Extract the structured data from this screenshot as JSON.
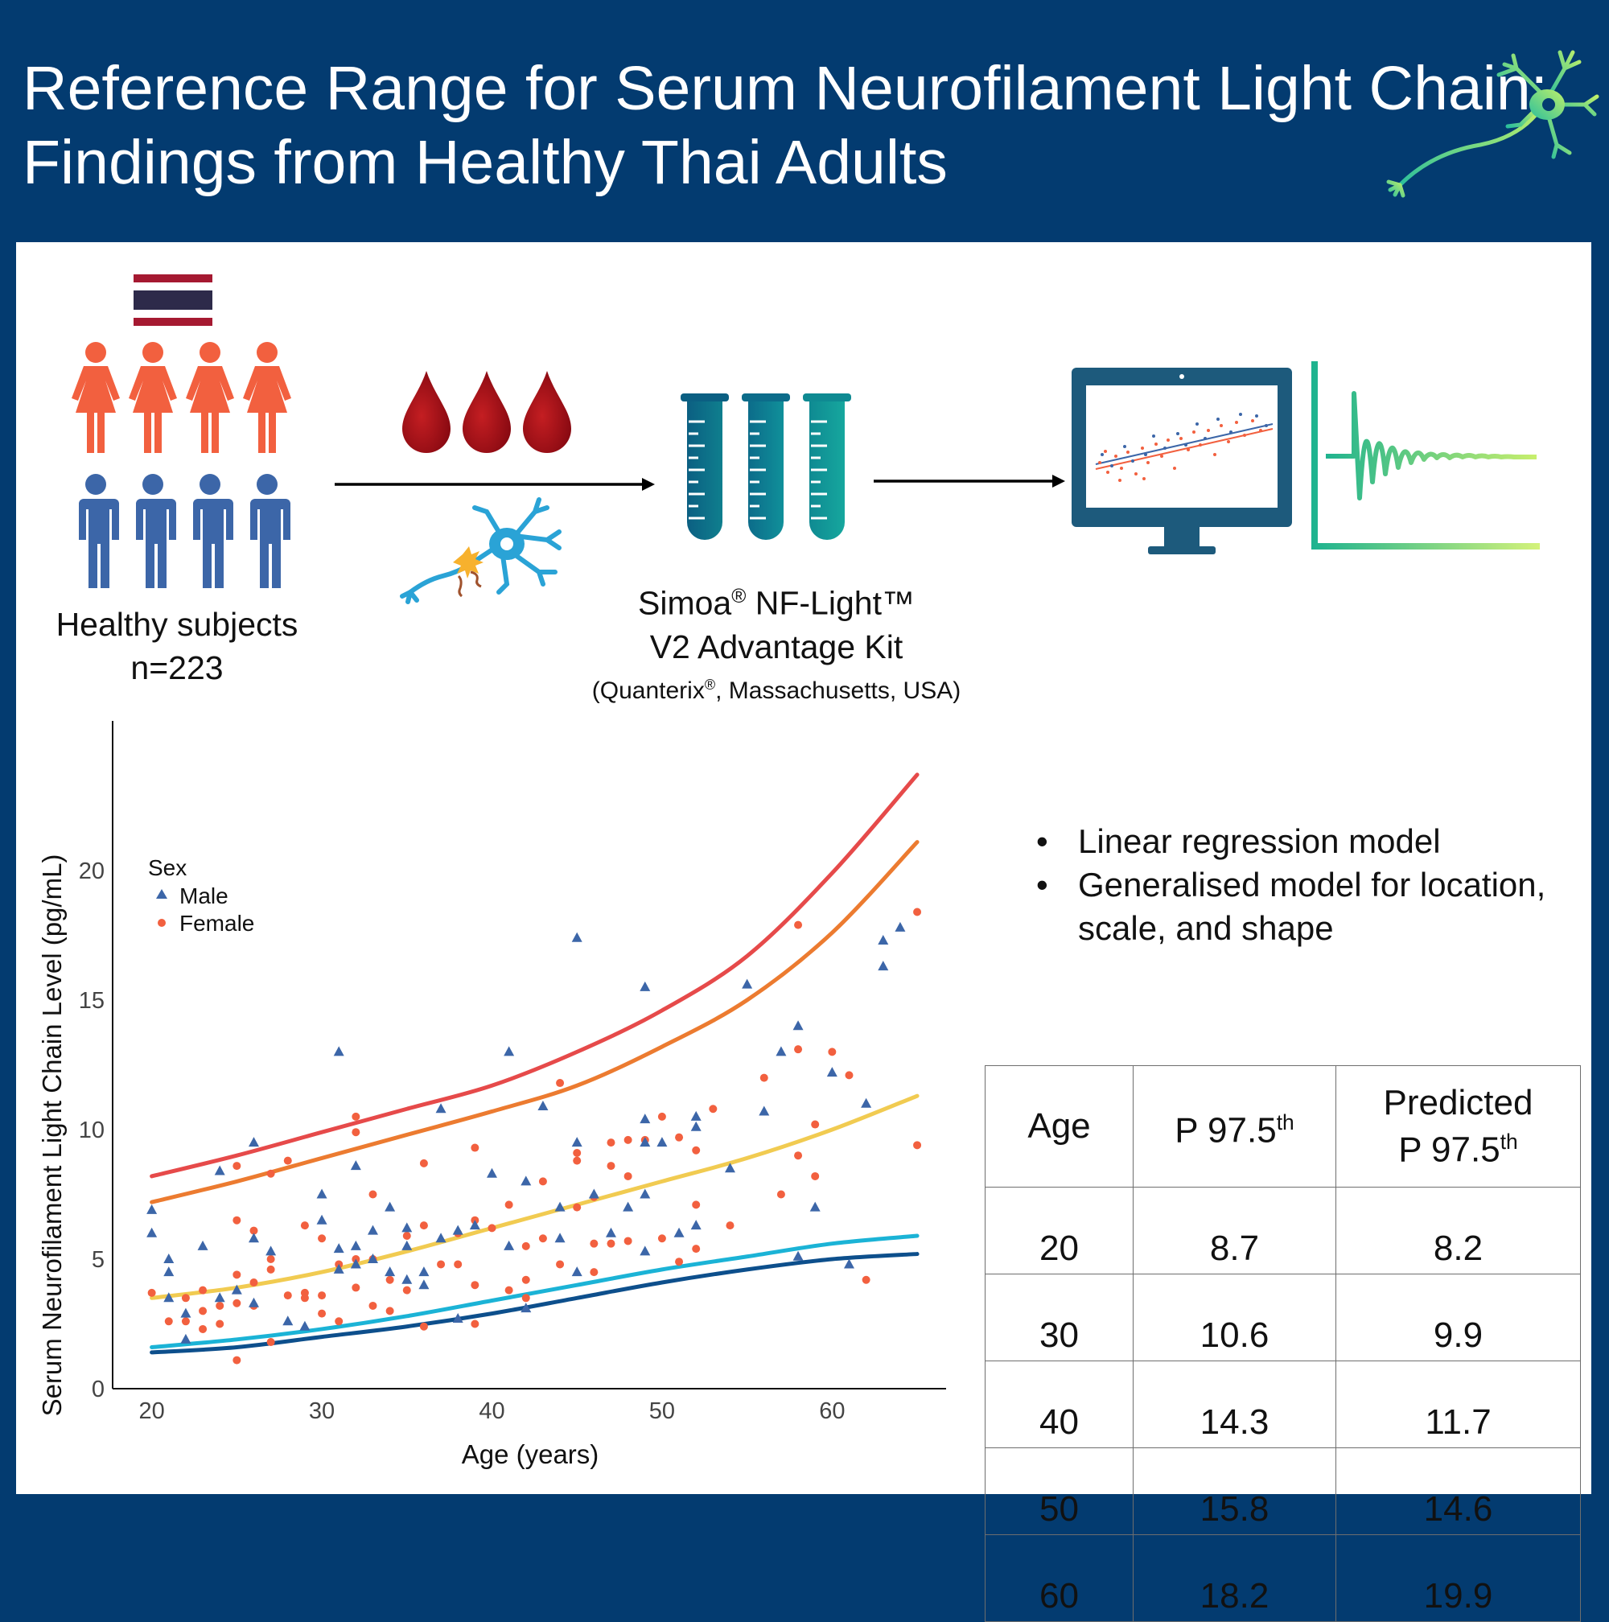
{
  "title": {
    "line1": "Reference Range for Serum Neurofilament Light Chain:",
    "line2": "Findings from Healthy Thai Adults"
  },
  "colors": {
    "background": "#033b70",
    "female": "#f2603f",
    "male": "#3c66a8",
    "blood": "#a00a14",
    "tube": "#0f7f8e",
    "monitor": "#1d5a7c",
    "curve_p975": "#e64a4a",
    "curve_predicted_p975": "#ec7b30",
    "curve_median": "#f1cb51",
    "curve_p25": "#1bb3d6",
    "curve_p025": "#0d4f8c"
  },
  "icons": [
    "thai-flag-icon",
    "female-person-icon",
    "male-person-icon",
    "blood-drop-icon",
    "neuron-icon",
    "test-tube-icon",
    "computer-monitor-icon",
    "waveform-icon"
  ],
  "subjects": {
    "label": "Healthy subjects",
    "n": "n=223"
  },
  "kit": {
    "line1_a": "Simoa",
    "line1_reg": "®",
    "line1_b": " NF-Light™",
    "line2": "V2 Advantage Kit",
    "line3_a": "(Quanterix",
    "line3_reg": "®",
    "line3_b": ", Massachusetts, USA)"
  },
  "methods": {
    "bullet": "•",
    "item1": "Linear regression model",
    "item2_line1": "Generalised model for location,",
    "item2_line2": "scale, and shape"
  },
  "chart_data": {
    "type": "scatter",
    "xlabel": "Age (years)",
    "ylabel": "Serum Neurofilament Light Chain Level (pg/mL)",
    "xlim": [
      17.7,
      66.7
    ],
    "ylim": [
      0,
      25
    ],
    "xticks": [
      20,
      30,
      40,
      50,
      60
    ],
    "yticks": [
      0,
      5,
      10,
      15,
      20
    ],
    "legend": {
      "title": "Sex",
      "position": "top-left",
      "entries": [
        "Male",
        "Female"
      ]
    },
    "grid": false,
    "male_points": [
      [
        20,
        6.9
      ],
      [
        20,
        6
      ],
      [
        21,
        5
      ],
      [
        21,
        4.5
      ],
      [
        21,
        3.5
      ],
      [
        22,
        2.9
      ],
      [
        22,
        1.9
      ],
      [
        23,
        5.5
      ],
      [
        24,
        8.4
      ],
      [
        24,
        3.5
      ],
      [
        25,
        3.8
      ],
      [
        26,
        9.5
      ],
      [
        26,
        5.8
      ],
      [
        26,
        3.3
      ],
      [
        27,
        5.3
      ],
      [
        28,
        2.6
      ],
      [
        29,
        2.4
      ],
      [
        30,
        7.5
      ],
      [
        30,
        6.5
      ],
      [
        31,
        13
      ],
      [
        31,
        5.4
      ],
      [
        31,
        4.6
      ],
      [
        32,
        8.6
      ],
      [
        32,
        5.5
      ],
      [
        32,
        4.8
      ],
      [
        33,
        6.1
      ],
      [
        33,
        5
      ],
      [
        34,
        7
      ],
      [
        34,
        4.5
      ],
      [
        35,
        6.2
      ],
      [
        35,
        5.5
      ],
      [
        35,
        4.2
      ],
      [
        36,
        4.5
      ],
      [
        36,
        4
      ],
      [
        37,
        5.8
      ],
      [
        37,
        10.8
      ],
      [
        38,
        2.7
      ],
      [
        38,
        6.1
      ],
      [
        39,
        6.3
      ],
      [
        40,
        8.3
      ],
      [
        41,
        13
      ],
      [
        41,
        5.5
      ],
      [
        42,
        8
      ],
      [
        42,
        3.1
      ],
      [
        43,
        10.9
      ],
      [
        44,
        7
      ],
      [
        44,
        5.8
      ],
      [
        45,
        17.4
      ],
      [
        45,
        9.5
      ],
      [
        45,
        4.5
      ],
      [
        46,
        7.5
      ],
      [
        47,
        6
      ],
      [
        48,
        7
      ],
      [
        49,
        15.5
      ],
      [
        49,
        10.4
      ],
      [
        49,
        9.5
      ],
      [
        49,
        7.5
      ],
      [
        49,
        5.3
      ],
      [
        50,
        9.5
      ],
      [
        51,
        6
      ],
      [
        52,
        10.5
      ],
      [
        52,
        6.3
      ],
      [
        52,
        10.1
      ],
      [
        54,
        8.5
      ],
      [
        55,
        15.6
      ],
      [
        56,
        10.7
      ],
      [
        57,
        13
      ],
      [
        58,
        14
      ],
      [
        58,
        5.1
      ],
      [
        59,
        7
      ],
      [
        60,
        12.2
      ],
      [
        61,
        4.8
      ],
      [
        62,
        11
      ],
      [
        63,
        17.3
      ],
      [
        63,
        16.3
      ],
      [
        64,
        17.8
      ]
    ],
    "female_points": [
      [
        20,
        3.7
      ],
      [
        21,
        2.6
      ],
      [
        22,
        2.6
      ],
      [
        22,
        3.5
      ],
      [
        23,
        2.3
      ],
      [
        23,
        3.8
      ],
      [
        23,
        3
      ],
      [
        24,
        3.2
      ],
      [
        24,
        2.5
      ],
      [
        25,
        8.6
      ],
      [
        25,
        6.5
      ],
      [
        25,
        4.4
      ],
      [
        25,
        3.3
      ],
      [
        25,
        1.1
      ],
      [
        26,
        6.1
      ],
      [
        26,
        4.1
      ],
      [
        26,
        3.2
      ],
      [
        27,
        8.3
      ],
      [
        27,
        5
      ],
      [
        27,
        4.6
      ],
      [
        27,
        1.8
      ],
      [
        28,
        8.8
      ],
      [
        28,
        3.6
      ],
      [
        29,
        6.3
      ],
      [
        29,
        3.7
      ],
      [
        29,
        3.5
      ],
      [
        30,
        5.8
      ],
      [
        30,
        3.6
      ],
      [
        30,
        2.9
      ],
      [
        31,
        4.8
      ],
      [
        31,
        2.6
      ],
      [
        32,
        10.5
      ],
      [
        32,
        9.9
      ],
      [
        32,
        5
      ],
      [
        32,
        3.9
      ],
      [
        33,
        7.5
      ],
      [
        33,
        5
      ],
      [
        33,
        3.2
      ],
      [
        34,
        4.2
      ],
      [
        34,
        3
      ],
      [
        35,
        5.9
      ],
      [
        35,
        3.8
      ],
      [
        36,
        8.7
      ],
      [
        36,
        6.3
      ],
      [
        36,
        2.4
      ],
      [
        37,
        4.8
      ],
      [
        38,
        6
      ],
      [
        38,
        4.8
      ],
      [
        39,
        9.3
      ],
      [
        39,
        6.5
      ],
      [
        39,
        4
      ],
      [
        39,
        2.5
      ],
      [
        40,
        6.2
      ],
      [
        41,
        7.1
      ],
      [
        41,
        3.8
      ],
      [
        42,
        5.5
      ],
      [
        42,
        4.2
      ],
      [
        42,
        3.5
      ],
      [
        43,
        8
      ],
      [
        43,
        5.8
      ],
      [
        44,
        11.8
      ],
      [
        44,
        4.8
      ],
      [
        45,
        9.1
      ],
      [
        45,
        8.8
      ],
      [
        45,
        7
      ],
      [
        46,
        7.4
      ],
      [
        46,
        5.6
      ],
      [
        46,
        4.5
      ],
      [
        47,
        9.5
      ],
      [
        47,
        8.6
      ],
      [
        47,
        5.6
      ],
      [
        48,
        9.6
      ],
      [
        48,
        8.2
      ],
      [
        48,
        5.7
      ],
      [
        49,
        9.6
      ],
      [
        50,
        10.5
      ],
      [
        50,
        5.8
      ],
      [
        51,
        9.7
      ],
      [
        51,
        4.9
      ],
      [
        52,
        9.2
      ],
      [
        52,
        7.1
      ],
      [
        52,
        5.4
      ],
      [
        53,
        10.8
      ],
      [
        54,
        6.3
      ],
      [
        56,
        12
      ],
      [
        57,
        7.5
      ],
      [
        58,
        17.9
      ],
      [
        58,
        13.1
      ],
      [
        58,
        9
      ],
      [
        59,
        8.2
      ],
      [
        59,
        10.2
      ],
      [
        60,
        13
      ],
      [
        61,
        12.1
      ],
      [
        62,
        4.2
      ],
      [
        65,
        18.4
      ],
      [
        65,
        9.4
      ]
    ],
    "series": [
      {
        "x": [
          20,
          25,
          30,
          35,
          40,
          45,
          50,
          55,
          60,
          65
        ],
        "values": [
          8.2,
          9,
          9.9,
          10.8,
          11.7,
          13,
          14.6,
          16.7,
          19.9,
          23.7
        ]
      },
      {
        "x": [
          20,
          25,
          30,
          35,
          40,
          45,
          50,
          55,
          60,
          65
        ],
        "values": [
          7.2,
          8,
          8.9,
          9.8,
          10.7,
          11.7,
          13.2,
          15,
          17.6,
          21.1
        ]
      },
      {
        "x": [
          20,
          25,
          30,
          35,
          40,
          45,
          50,
          55,
          60,
          65
        ],
        "values": [
          3.5,
          3.9,
          4.5,
          5.3,
          6.2,
          7.1,
          8,
          8.9,
          10,
          11.3
        ]
      },
      {
        "x": [
          20,
          25,
          30,
          35,
          40,
          45,
          50,
          55,
          60,
          65
        ],
        "values": [
          1.6,
          1.9,
          2.3,
          2.8,
          3.4,
          4,
          4.6,
          5.1,
          5.6,
          5.9
        ]
      },
      {
        "x": [
          20,
          25,
          30,
          35,
          40,
          45,
          50,
          55,
          60,
          65
        ],
        "values": [
          1.4,
          1.6,
          2,
          2.4,
          2.9,
          3.5,
          4.1,
          4.6,
          5,
          5.2
        ]
      }
    ]
  },
  "table": {
    "headers": {
      "age": "Age",
      "p975": "P 97.5",
      "p975_sup": "th",
      "pred_line1": "Predicted",
      "pred_line2": "P 97.5",
      "pred_sup": "th"
    },
    "rows": [
      {
        "age": "20",
        "p975": "8.7",
        "predicted": "8.2"
      },
      {
        "age": "30",
        "p975": "10.6",
        "predicted": "9.9"
      },
      {
        "age": "40",
        "p975": "14.3",
        "predicted": "11.7"
      },
      {
        "age": "50",
        "p975": "15.8",
        "predicted": "14.6"
      },
      {
        "age": "60",
        "p975": "18.2",
        "predicted": "19.9"
      }
    ]
  }
}
